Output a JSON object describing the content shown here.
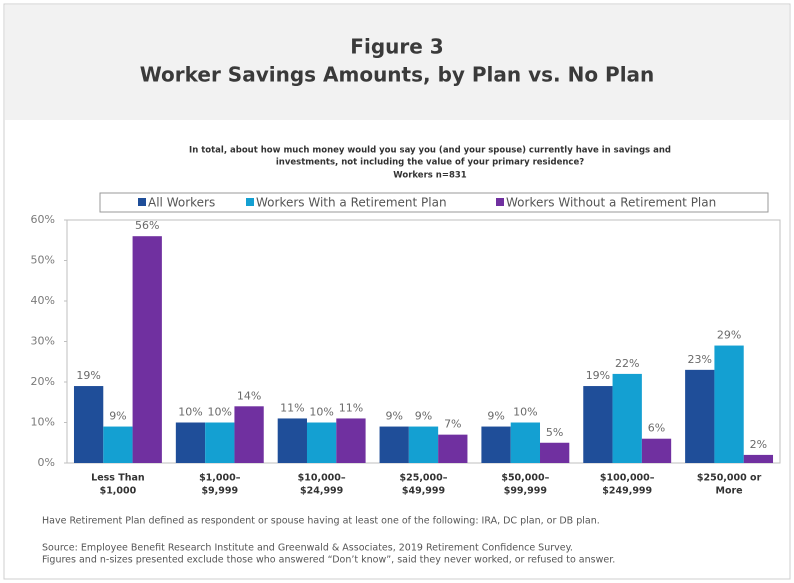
{
  "chart_data": {
    "type": "bar",
    "title": "Figure 3",
    "subtitle": "Worker Savings Amounts, by Plan vs. No Plan",
    "question": [
      "In total, about how much money would you say you (and your spouse) currently have in savings and",
      "investments, not including the value of your primary residence?"
    ],
    "sample": "Workers n=831",
    "categories": [
      [
        "Less Than",
        "$1,000"
      ],
      [
        "$1,000–",
        "$9,999"
      ],
      [
        "$10,000–",
        "$24,999"
      ],
      [
        "$25,000–",
        "$49,999"
      ],
      [
        "$50,000–",
        "$99,999"
      ],
      [
        "$100,000–",
        "$249,999"
      ],
      [
        "$250,000 or",
        "More"
      ]
    ],
    "series": [
      {
        "name": "All Workers",
        "color": "#1f4e99",
        "values": [
          19,
          10,
          11,
          9,
          9,
          19,
          23
        ],
        "value_labels": [
          "19%",
          "10%",
          "11%",
          "9%",
          "9%",
          "19%",
          "23%"
        ]
      },
      {
        "name": "Workers With a Retirement Plan",
        "color": "#14a0d2",
        "values": [
          9,
          10,
          10,
          9,
          10,
          22,
          29
        ],
        "value_labels": [
          "9%",
          "10%",
          "10%",
          "9%",
          "10%",
          "22%",
          "29%"
        ]
      },
      {
        "name": "Workers Without a Retirement Plan",
        "color": "#7030a0",
        "values": [
          56,
          14,
          11,
          7,
          5,
          6,
          2
        ],
        "value_labels": [
          "56%",
          "14%",
          "11%",
          "7%",
          "5%",
          "6%",
          "2%"
        ]
      }
    ],
    "ylim": [
      0,
      60
    ],
    "yticks": [
      {
        "value": 0,
        "label": "0%"
      },
      {
        "value": 10,
        "label": "10%"
      },
      {
        "value": 20,
        "label": "20%"
      },
      {
        "value": 30,
        "label": "30%"
      },
      {
        "value": 40,
        "label": "40%"
      },
      {
        "value": 50,
        "label": "50%"
      },
      {
        "value": 60,
        "label": "60%"
      }
    ],
    "notes": [
      "Have Retirement Plan defined as respondent or spouse having at least one of the following: IRA, DC plan, or DB plan.",
      "Source: Employee Benefit Research Institute and Greenwald & Associates, 2019 Retirement Confidence Survey.",
      "Figures and n-sizes presented exclude those who answered “Don’t know”, said they never worked, or refused to answer."
    ]
  }
}
